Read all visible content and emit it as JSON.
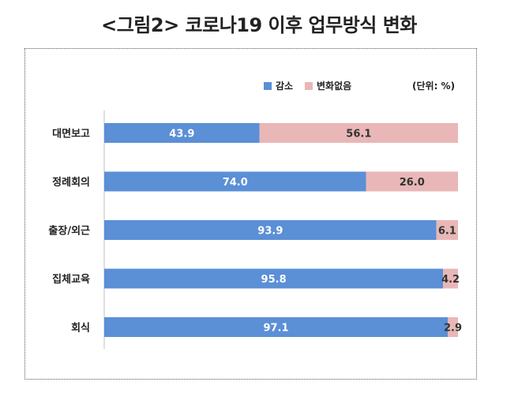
{
  "title": "<그림2> 코로나19 이후 업무방식 변화",
  "unit_label": "(단위: %)",
  "colors": {
    "decrease": "#5b8fd6",
    "no_change": "#e9b7b7"
  },
  "chart_data": {
    "type": "bar",
    "orientation": "horizontal-stacked-100",
    "categories": [
      "대면보고",
      "정례회의",
      "출장/외근",
      "집체교육",
      "회식"
    ],
    "series": [
      {
        "name": "감소",
        "values": [
          43.9,
          74.0,
          93.9,
          95.8,
          97.1
        ]
      },
      {
        "name": "변화없음",
        "values": [
          56.1,
          26.0,
          6.1,
          4.2,
          2.9
        ]
      }
    ],
    "data_labels": [
      [
        "43.9",
        "74.0",
        "93.9",
        "95.8",
        "97.1"
      ],
      [
        "56.1",
        "26.0",
        "6.1",
        "4.2",
        "2.9"
      ]
    ],
    "xlim": [
      0,
      100
    ],
    "legend": "top-right",
    "grid": false
  }
}
